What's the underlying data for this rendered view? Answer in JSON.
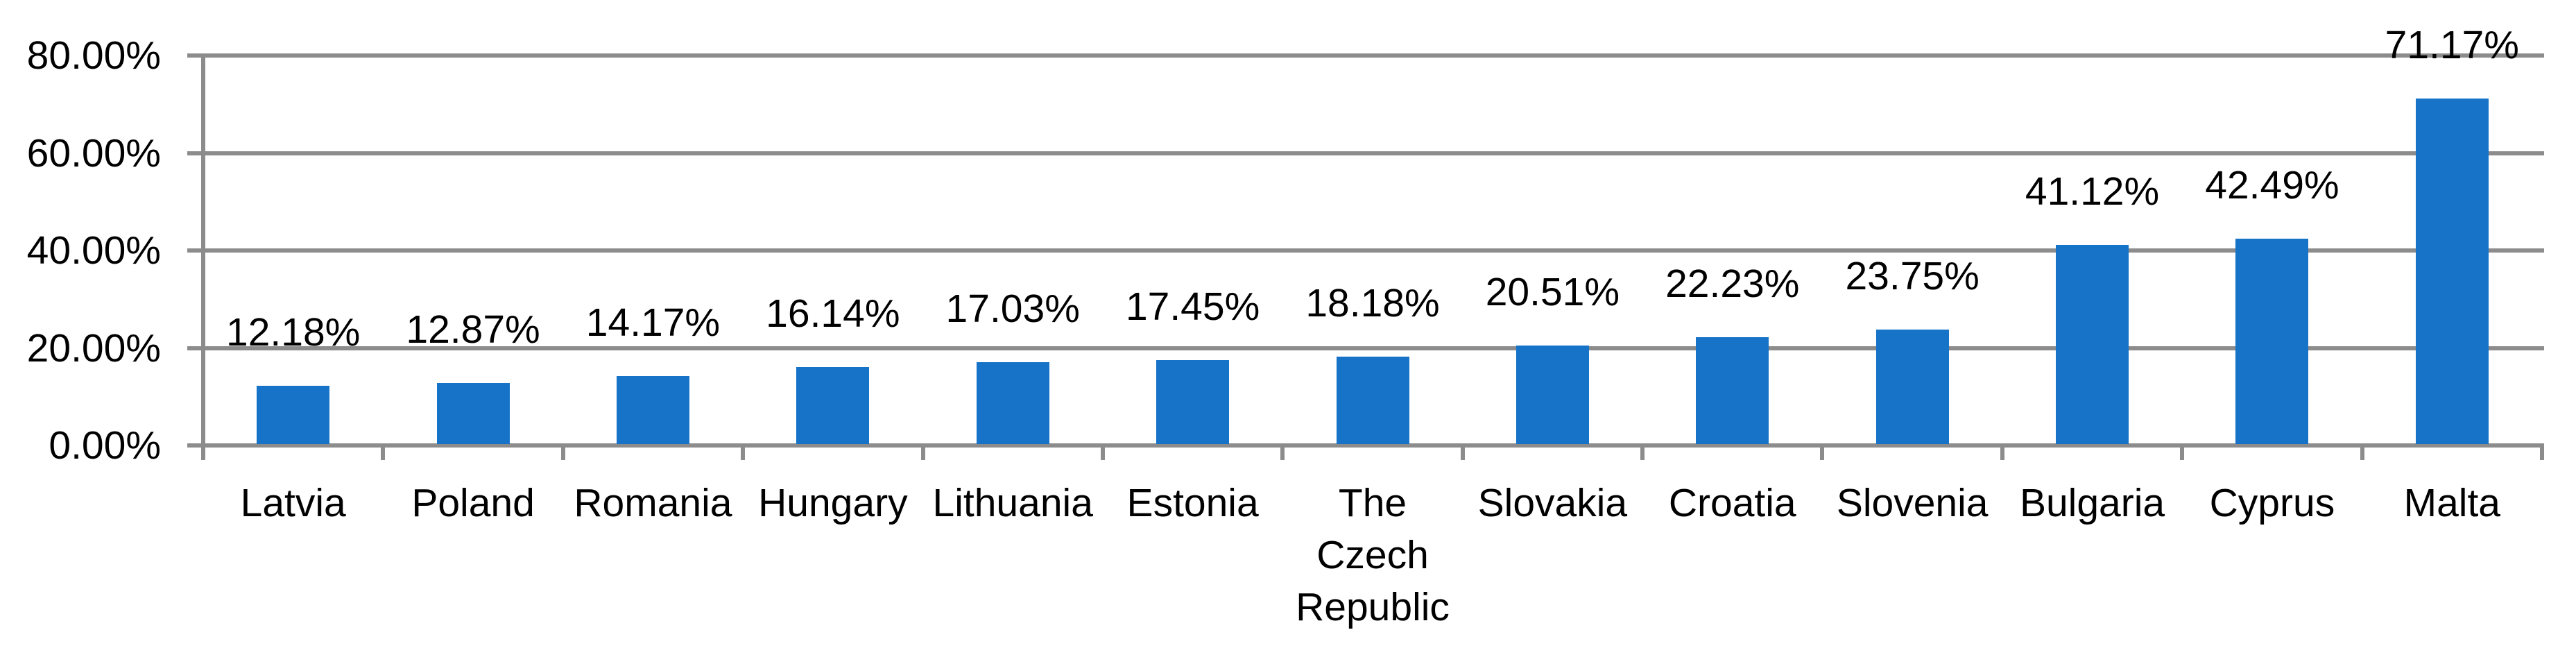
{
  "chart_data": {
    "type": "bar",
    "title": "",
    "xlabel": "",
    "ylabel": "",
    "categories": [
      "Latvia",
      "Poland",
      "Romania",
      "Hungary",
      "Lithuania",
      "Estonia",
      "The Czech Republic",
      "Slovakia",
      "Croatia",
      "Slovenia",
      "Bulgaria",
      "Cyprus",
      "Malta"
    ],
    "categories_display": [
      "Latvia",
      "Poland",
      "Romania",
      "Hungary",
      "Lithuania",
      "Estonia",
      "The\nCzech\nRepublic",
      "Slovakia",
      "Croatia",
      "Slovenia",
      "Bulgaria",
      "Cyprus",
      "Malta"
    ],
    "values": [
      12.18,
      12.87,
      14.17,
      16.14,
      17.03,
      17.45,
      18.18,
      20.51,
      22.23,
      23.75,
      41.12,
      42.49,
      71.17
    ],
    "value_labels": [
      "12.18%",
      "12.87%",
      "14.17%",
      "16.14%",
      "17.03%",
      "17.45%",
      "18.18%",
      "20.51%",
      "22.23%",
      "23.75%",
      "41.12%",
      "42.49%",
      "71.17%"
    ],
    "ylim": [
      0,
      80
    ],
    "ytick_values": [
      0,
      20,
      40,
      60,
      80
    ],
    "ytick_labels": [
      "0.00%",
      "20.00%",
      "40.00%",
      "60.00%",
      "80.00%"
    ],
    "grid": true,
    "legend": false,
    "data_labels_position": "outside-end",
    "bar_color": "#1673C8",
    "grid_color": "#8C8C8C",
    "text_color": "#000000",
    "background_color": "#FFFFFF"
  }
}
